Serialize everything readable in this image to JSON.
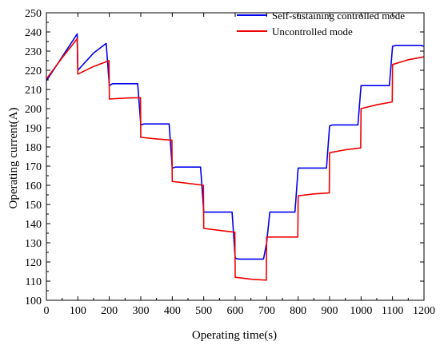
{
  "chart_data": {
    "type": "line",
    "xlabel": "Operating time(s)",
    "ylabel": "Operating current(A)",
    "xlim": [
      0,
      1200
    ],
    "ylim": [
      100,
      250
    ],
    "xticks": [
      0,
      100,
      200,
      300,
      400,
      500,
      600,
      700,
      800,
      900,
      1000,
      1100,
      1200
    ],
    "yticks": [
      100,
      110,
      120,
      130,
      140,
      150,
      160,
      170,
      180,
      190,
      200,
      210,
      220,
      230,
      240,
      250
    ],
    "grid": false,
    "legend_position": "top-right",
    "series": [
      {
        "name": "Self-sustaining controlled mode",
        "color": "#0000ee",
        "x": [
          0,
          50,
          98,
          100,
          150,
          190,
          200,
          210,
          250,
          290,
          300,
          310,
          350,
          390,
          400,
          410,
          450,
          490,
          500,
          510,
          550,
          590,
          600,
          610,
          650,
          690,
          700,
          710,
          750,
          790,
          800,
          810,
          850,
          890,
          900,
          910,
          950,
          990,
          1000,
          1010,
          1050,
          1090,
          1100,
          1110,
          1150,
          1190,
          1200
        ],
        "y": [
          214.5,
          227,
          239,
          220,
          229,
          234,
          212,
          213,
          213,
          213,
          191.5,
          192,
          192,
          192,
          169,
          169.5,
          169.5,
          169.5,
          146,
          146,
          146,
          146,
          122,
          121.5,
          121.5,
          121.5,
          130,
          146,
          146,
          146,
          169,
          169,
          169,
          169,
          191,
          191.5,
          191.5,
          191.5,
          212,
          212,
          212,
          212,
          232.5,
          233,
          233,
          233,
          232.5
        ]
      },
      {
        "name": "Uncontrolled mode",
        "color": "#ee0000",
        "x": [
          0,
          50,
          98,
          100,
          150,
          199,
          200,
          250,
          299,
          300,
          350,
          399,
          400,
          450,
          499,
          500,
          550,
          599,
          600,
          650,
          699,
          700,
          750,
          799,
          800,
          850,
          899,
          900,
          950,
          999,
          1000,
          1050,
          1099,
          1100,
          1150,
          1200
        ],
        "y": [
          215.5,
          226.5,
          236.5,
          218,
          222,
          225,
          205,
          205.5,
          205.7,
          185,
          184.2,
          183.5,
          162,
          161,
          160,
          137.5,
          136.5,
          135.5,
          112,
          111,
          110.5,
          133,
          133,
          133,
          154.5,
          155.5,
          156,
          177,
          178.5,
          179.5,
          200,
          202,
          203.5,
          223,
          225.5,
          227
        ]
      }
    ]
  }
}
